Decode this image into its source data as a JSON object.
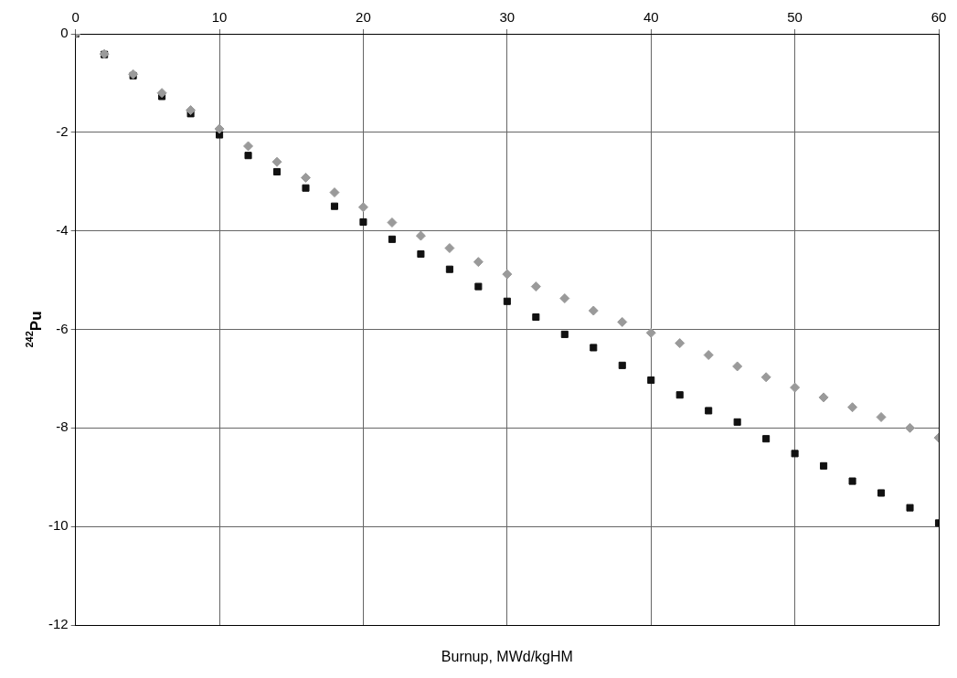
{
  "chart_data": {
    "type": "scatter",
    "xlabel": "Burnup, MWd/kgHM",
    "ylabel": "$^{242}$Pu",
    "x": [
      0,
      2,
      4,
      6,
      8,
      10,
      12,
      14,
      16,
      18,
      20,
      22,
      24,
      26,
      28,
      30,
      32,
      34,
      36,
      38,
      40,
      42,
      44,
      46,
      48,
      50,
      52,
      54,
      56,
      58,
      60
    ],
    "series": [
      {
        "color": "#9a9a9a",
        "marker": "diamond",
        "values": [
          0,
          -0.41,
          -0.82,
          -1.2,
          -1.55,
          -1.93,
          -2.28,
          -2.6,
          -2.92,
          -3.22,
          -3.52,
          -3.83,
          -4.1,
          -4.35,
          -4.63,
          -4.88,
          -5.13,
          -5.37,
          -5.62,
          -5.85,
          -6.07,
          -6.28,
          -6.52,
          -6.75,
          -6.97,
          -7.18,
          -7.38,
          -7.58,
          -7.78,
          -8.0,
          -8.2
        ]
      },
      {
        "color": "#111111",
        "marker": "square",
        "values": [
          0,
          -0.42,
          -0.85,
          -1.27,
          -1.62,
          -2.05,
          -2.47,
          -2.8,
          -3.13,
          -3.5,
          -3.82,
          -4.17,
          -4.47,
          -4.78,
          -5.13,
          -5.43,
          -5.75,
          -6.1,
          -6.37,
          -6.73,
          -7.03,
          -7.33,
          -7.65,
          -7.88,
          -8.22,
          -8.52,
          -8.77,
          -9.08,
          -9.32,
          -9.62,
          -9.93
        ]
      }
    ],
    "xlim": [
      0,
      60
    ],
    "xticks": [
      0,
      10,
      20,
      30,
      40,
      50,
      60
    ],
    "ylim": [
      -12,
      0
    ],
    "yticks": [
      -12,
      -10,
      -8,
      -6,
      -4,
      -2,
      0
    ],
    "grid": true,
    "legend": false
  }
}
